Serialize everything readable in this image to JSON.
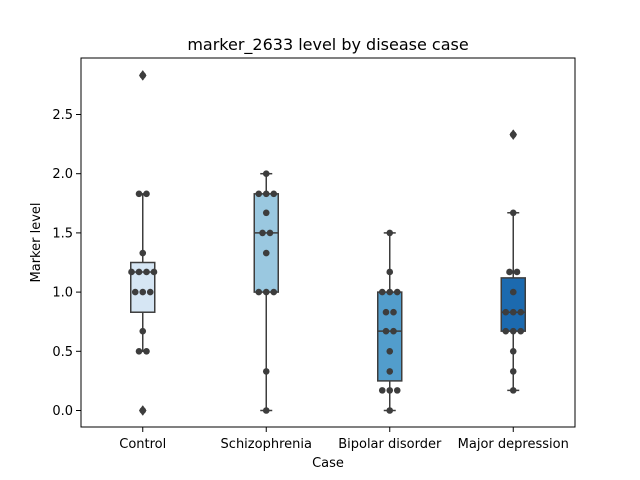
{
  "chart_data": {
    "type": "box",
    "title": "marker_2633 level by disease case",
    "xlabel": "Case",
    "ylabel": "Marker level",
    "ylim": [
      -0.14,
      3.0
    ],
    "yticks": [
      0.0,
      0.5,
      1.0,
      1.5,
      2.0,
      2.5
    ],
    "ytick_labels": [
      "0.0",
      "0.5",
      "1.0",
      "1.5",
      "2.0",
      "2.5"
    ],
    "categories": [
      "Control",
      "Schizophrenia",
      "Bipolar disorder",
      "Major depression"
    ],
    "grid": false,
    "boxes": [
      {
        "q1": 0.83,
        "median": 1.17,
        "q3": 1.25,
        "whisker_low": 0.5,
        "whisker_high": 1.83,
        "outliers": [
          0.0,
          2.83
        ],
        "color": "#d6e6f4"
      },
      {
        "q1": 1.0,
        "median": 1.5,
        "q3": 1.83,
        "whisker_low": 0.0,
        "whisker_high": 2.0,
        "outliers": [],
        "color": "#9ac8e0"
      },
      {
        "q1": 0.25,
        "median": 0.67,
        "q3": 1.0,
        "whisker_low": 0.0,
        "whisker_high": 1.5,
        "outliers": [],
        "color": "#529dcc"
      },
      {
        "q1": 0.67,
        "median": 0.83,
        "q3": 1.12,
        "whisker_low": 0.17,
        "whisker_high": 1.67,
        "outliers": [
          2.33
        ],
        "color": "#1c6aaf"
      }
    ],
    "points": [
      [
        1.83,
        1.83,
        1.17,
        1.17,
        1.17,
        1.17,
        1.0,
        1.0,
        1.0,
        1.33,
        0.67,
        0.5,
        0.5,
        0.0,
        2.83
      ],
      [
        2.0,
        1.83,
        1.83,
        1.83,
        1.67,
        1.5,
        1.5,
        1.33,
        1.0,
        1.0,
        1.0,
        0.33,
        0.0
      ],
      [
        1.5,
        1.17,
        1.0,
        1.0,
        1.0,
        0.83,
        0.83,
        0.67,
        0.67,
        0.5,
        0.33,
        0.17,
        0.17,
        0.17,
        0.0
      ],
      [
        2.33,
        1.67,
        1.17,
        1.17,
        1.0,
        0.83,
        0.83,
        0.83,
        0.67,
        0.67,
        0.67,
        0.5,
        0.33,
        0.17
      ]
    ]
  }
}
